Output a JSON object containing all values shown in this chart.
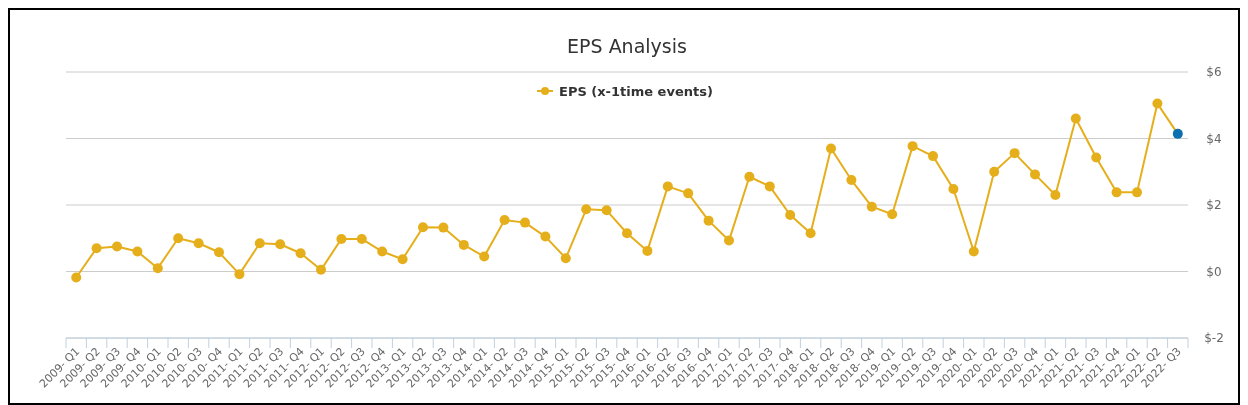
{
  "chart_data": {
    "type": "line",
    "title": "EPS Analysis",
    "categories": [
      "2009- Q1",
      "2009- Q2",
      "2009- Q3",
      "2009- Q4",
      "2010- Q1",
      "2010- Q2",
      "2010- Q3",
      "2010- Q4",
      "2011- Q1",
      "2011- Q2",
      "2011- Q3",
      "2011- Q4",
      "2012- Q1",
      "2012- Q2",
      "2012- Q3",
      "2012- Q4",
      "2013- Q1",
      "2013- Q2",
      "2013- Q3",
      "2013- Q4",
      "2014- Q1",
      "2014- Q2",
      "2014- Q3",
      "2014- Q4",
      "2015- Q1",
      "2015- Q2",
      "2015- Q3",
      "2015- Q4",
      "2016- Q1",
      "2016- Q2",
      "2016- Q3",
      "2016- Q4",
      "2017- Q1",
      "2017- Q2",
      "2017- Q3",
      "2017- Q4",
      "2018- Q1",
      "2018- Q2",
      "2018- Q3",
      "2018- Q4",
      "2019- Q1",
      "2019- Q2",
      "2019- Q3",
      "2019- Q4",
      "2020- Q1",
      "2020- Q2",
      "2020- Q3",
      "2020- Q4",
      "2021- Q1",
      "2021- Q2",
      "2021- Q3",
      "2021- Q4",
      "2022- Q1",
      "2022- Q2",
      "2022- Q3"
    ],
    "series": [
      {
        "name": "EPS (x-1time events)",
        "color": "#e5ae1b",
        "colors": [
          "#e5ae1b",
          "#e5ae1b",
          "#e5ae1b",
          "#e5ae1b",
          "#e5ae1b",
          "#e5ae1b",
          "#e5ae1b",
          "#e5ae1b",
          "#e5ae1b",
          "#e5ae1b",
          "#e5ae1b",
          "#e5ae1b",
          "#e5ae1b",
          "#e5ae1b",
          "#e5ae1b",
          "#e5ae1b",
          "#e5ae1b",
          "#e5ae1b",
          "#e5ae1b",
          "#e5ae1b",
          "#e5ae1b",
          "#e5ae1b",
          "#e5ae1b",
          "#e5ae1b",
          "#e5ae1b",
          "#e5ae1b",
          "#e5ae1b",
          "#e5ae1b",
          "#e5ae1b",
          "#e5ae1b",
          "#e5ae1b",
          "#e5ae1b",
          "#e5ae1b",
          "#e5ae1b",
          "#e5ae1b",
          "#e5ae1b",
          "#e5ae1b",
          "#e5ae1b",
          "#e5ae1b",
          "#e5ae1b",
          "#e5ae1b",
          "#e5ae1b",
          "#e5ae1b",
          "#e5ae1b",
          "#e5ae1b",
          "#e5ae1b",
          "#e5ae1b",
          "#e5ae1b",
          "#e5ae1b",
          "#e5ae1b",
          "#e5ae1b",
          "#e5ae1b",
          "#e5ae1b",
          "#e5ae1b",
          "#0b6fb0"
        ],
        "values": [
          -0.18,
          0.7,
          0.75,
          0.6,
          0.1,
          1.0,
          0.85,
          0.58,
          -0.08,
          0.85,
          0.82,
          0.55,
          0.05,
          0.98,
          0.98,
          0.6,
          0.37,
          1.33,
          1.32,
          0.8,
          0.45,
          1.55,
          1.47,
          1.05,
          0.4,
          1.87,
          1.84,
          1.15,
          0.62,
          2.56,
          2.35,
          1.53,
          0.93,
          2.85,
          2.56,
          1.7,
          1.15,
          3.7,
          2.75,
          1.95,
          1.72,
          3.77,
          3.47,
          2.48,
          0.6,
          3.0,
          3.56,
          2.92,
          2.3,
          4.6,
          3.43,
          2.38,
          2.38,
          5.05,
          4.14
        ]
      }
    ],
    "ylim": [
      -2,
      6
    ],
    "yticks": [
      {
        "value": -2,
        "label": "$-2"
      },
      {
        "value": 0,
        "label": "$0"
      },
      {
        "value": 2,
        "label": "$2"
      },
      {
        "value": 4,
        "label": "$4"
      },
      {
        "value": 6,
        "label": "$6"
      }
    ],
    "grid": "y",
    "legend": "top",
    "marker": "circle",
    "line_style": "solid"
  }
}
